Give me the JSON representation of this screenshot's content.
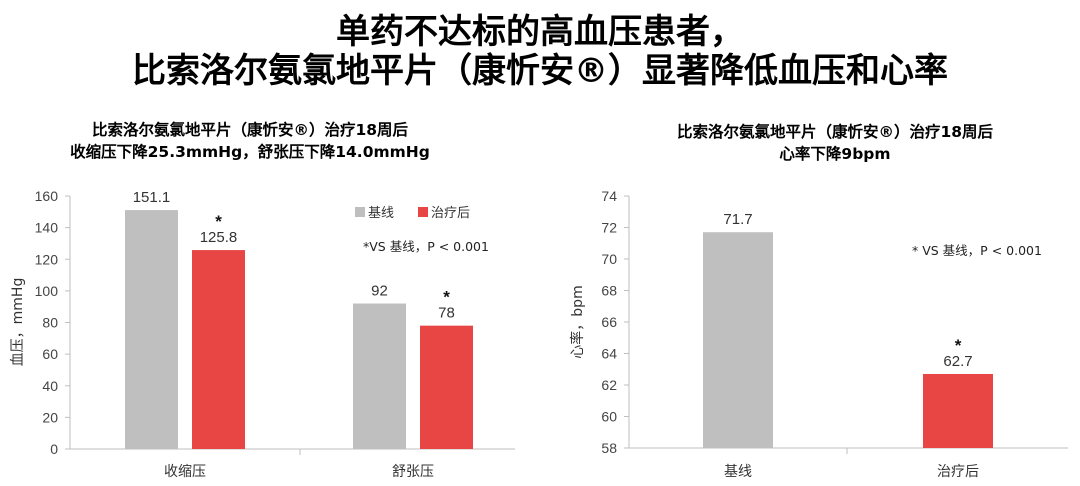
{
  "title": {
    "line1": "单药不达标的高血压患者，",
    "line2": "比索洛尔氨氯地平片（康忻安®）显著降低血压和心率"
  },
  "colors": {
    "baseline": "#bfbfbf",
    "treated": "#e84545"
  },
  "chart_data": [
    {
      "type": "bar",
      "title_line1": "比索洛尔氨氯地平片（康忻安®）治疗18周后",
      "title_line2": "收缩压下降25.3mmHg，舒张压下降14.0mmHg",
      "ylabel": "血压，mmHg",
      "xlabel": "",
      "ylim": [
        0,
        160
      ],
      "yticks": [
        0,
        20,
        40,
        60,
        80,
        100,
        120,
        140,
        160
      ],
      "categories": [
        "收缩压",
        "舒张压"
      ],
      "series": [
        {
          "name": "基线",
          "values": [
            151.1,
            92
          ],
          "labels": [
            "151.1",
            "92"
          ],
          "marks": [
            "",
            ""
          ]
        },
        {
          "name": "治疗后",
          "values": [
            125.8,
            78
          ],
          "labels": [
            "125.8",
            "78"
          ],
          "marks": [
            "*",
            "*"
          ]
        }
      ],
      "note": "*VS 基线，P < 0.001",
      "legend": "top-right"
    },
    {
      "type": "bar",
      "title_line1": "比索洛尔氨氯地平片（康忻安®）治疗18周后",
      "title_line2": "心率下降9bpm",
      "ylabel": "心率，bpm",
      "xlabel": "",
      "ylim": [
        58,
        74
      ],
      "yticks": [
        58,
        60,
        62,
        64,
        66,
        68,
        70,
        72,
        74
      ],
      "categories": [
        "基线",
        "治疗后"
      ],
      "values": [
        71.7,
        62.7
      ],
      "labels": [
        "71.7",
        "62.7"
      ],
      "marks": [
        "",
        "*"
      ],
      "note": "* VS 基线，P < 0.001"
    }
  ]
}
